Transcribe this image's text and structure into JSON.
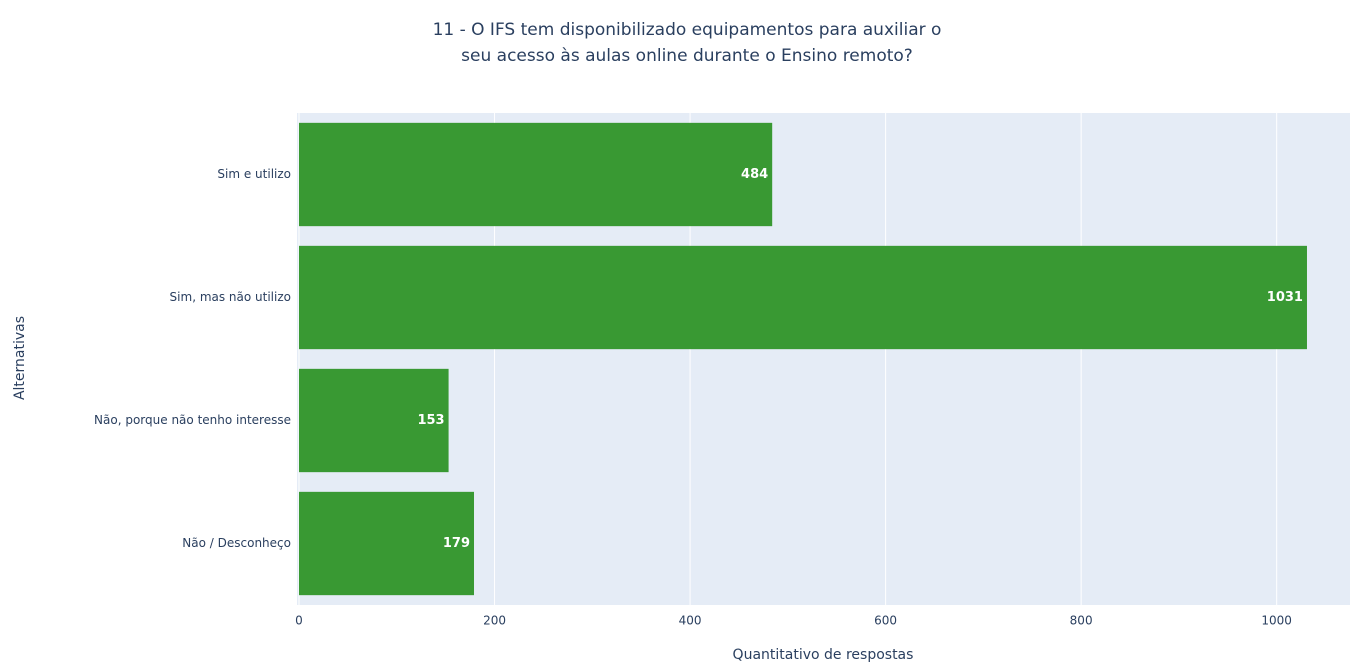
{
  "chart_data": {
    "type": "bar",
    "orientation": "horizontal",
    "title": [
      "11 - O IFS tem disponibilizado equipamentos para auxiliar o",
      "seu acesso às aulas online durante o Ensino remoto?"
    ],
    "xlabel": "Quantitativo de respostas",
    "ylabel": "Alternativas",
    "categories": [
      "Sim e utilizo",
      "Sim, mas não utilizo",
      "Não, porque não tenho interesse",
      "Não / Desconheço"
    ],
    "values": [
      484,
      1031,
      153,
      179
    ],
    "color": "#399933",
    "xlim": [
      0,
      1075
    ],
    "xticks": [
      0,
      200,
      400,
      600,
      800,
      1000
    ],
    "grid": true
  }
}
